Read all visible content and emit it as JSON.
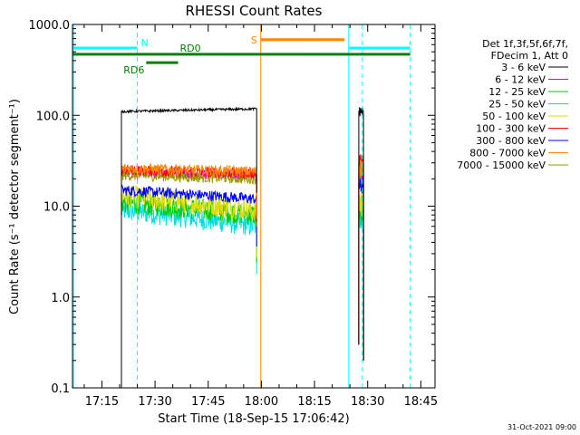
{
  "chart_data": {
    "type": "line",
    "title": "RHESSI Count Rates",
    "xlabel": "Start Time (18-Sep-15 17:06:42)",
    "ylabel": "Count Rate (s⁻¹ detector segment⁻¹)",
    "x_start": "17:06:42",
    "x_end": "18:49:00",
    "ylim": [
      0.1,
      1000
    ],
    "yscale": "log",
    "xticks": [
      "17:15",
      "17:30",
      "17:45",
      "18:00",
      "18:15",
      "18:30",
      "18:45"
    ],
    "yticks": [
      "0.1",
      "1.0",
      "10.0",
      "100.0",
      "1000.0"
    ],
    "legend_position": "right",
    "legend_header": [
      "Det 1f,3f,5f,6f,7f,",
      "FDecim 1, Att 0"
    ],
    "series": [
      {
        "name": "3 - 6 keV",
        "color": "#000000",
        "level": 110,
        "tail": 118,
        "burst2": 110
      },
      {
        "name": "6 - 12 keV",
        "color": "#dd00dd",
        "level": 24,
        "tail": 22,
        "burst2": 22
      },
      {
        "name": "12 - 25 keV",
        "color": "#00cc00",
        "level": 11,
        "tail": 8,
        "burst2": 9
      },
      {
        "name": "25 - 50 keV",
        "color": "#00dddd",
        "level": 9,
        "tail": 6,
        "burst2": 8
      },
      {
        "name": "50 - 100 keV",
        "color": "#dddd00",
        "level": 13,
        "tail": 9,
        "burst2": 11
      },
      {
        "name": "100 - 300 keV",
        "color": "#ff0000",
        "level": 25,
        "tail": 23,
        "burst2": 30
      },
      {
        "name": "300 - 800 keV",
        "color": "#0000ff",
        "level": 15,
        "tail": 12,
        "burst2": 17
      },
      {
        "name": "800 - 7000 keV",
        "color": "#ff8800",
        "level": 26,
        "tail": 24,
        "burst2": 27
      },
      {
        "name": "7000 - 15000 keV",
        "color": "#999900",
        "level": 22,
        "tail": 20,
        "burst2": 24
      }
    ],
    "segments": [
      {
        "start": "17:20:30",
        "end": "17:58:40"
      },
      {
        "start": "18:27:30",
        "end": "18:28:50"
      }
    ],
    "flags": [
      {
        "label": "N",
        "color": "#00ffff",
        "y": 550,
        "segments": [
          [
            "17:06:42",
            "17:25:00"
          ],
          [
            "18:24:40",
            "18:42:00"
          ]
        ]
      },
      {
        "label": "S",
        "color": "#ff8800",
        "y": 680,
        "segments": [
          [
            "17:59:50",
            "18:23:30"
          ]
        ]
      },
      {
        "label": "RD0",
        "color": "#008000",
        "y": 470,
        "segments": [
          [
            "17:06:42",
            "18:42:00"
          ]
        ]
      },
      {
        "label": "RD6",
        "color": "#008000",
        "y": 380,
        "segments": [
          [
            "17:27:30",
            "17:36:30"
          ]
        ]
      }
    ],
    "vlines": [
      {
        "time": "17:07:00",
        "color": "#00ffff",
        "style": "solid"
      },
      {
        "time": "17:25:00",
        "color": "#00ffff",
        "style": "dashed"
      },
      {
        "time": "17:59:50",
        "color": "#ff8800",
        "style": "solid"
      },
      {
        "time": "18:24:40",
        "color": "#00ffff",
        "style": "solid"
      },
      {
        "time": "18:28:30",
        "color": "#00ffff",
        "style": "dashed"
      },
      {
        "time": "18:42:00",
        "color": "#00ffff",
        "style": "dashed"
      }
    ]
  },
  "footer": {
    "date_stamp": "31-Oct-2021 09:00"
  }
}
